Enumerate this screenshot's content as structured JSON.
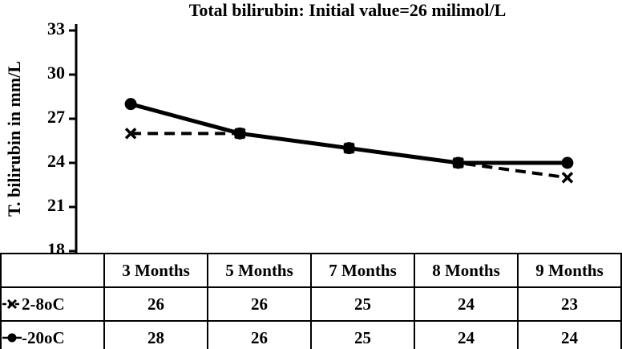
{
  "chart_data": {
    "type": "line",
    "title": "Total bilirubin: Initial value=26 milimol/L",
    "ylabel": "T. bilirubin  in mm/L",
    "categories": [
      "3 Months",
      "5 Months",
      "7 Months",
      "8 Months",
      "9 Months"
    ],
    "series": [
      {
        "name": "2-8oC",
        "marker": "x",
        "dash": true,
        "values": [
          26,
          26,
          25,
          24,
          23
        ]
      },
      {
        "name": "-20oC",
        "marker": "circle",
        "dash": false,
        "values": [
          28,
          26,
          25,
          24,
          24
        ]
      }
    ],
    "yticks": [
      18,
      21,
      24,
      27,
      30,
      33
    ],
    "ylim": [
      18,
      33
    ],
    "grid": false,
    "legend_position": "table-left",
    "colors": {
      "line": "#000000",
      "background": "#ffffff"
    }
  }
}
